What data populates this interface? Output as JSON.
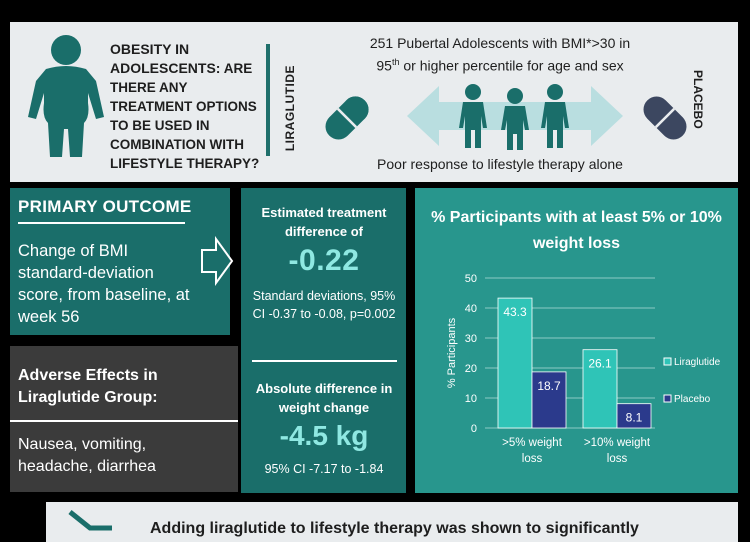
{
  "header": {
    "question_bold": "OBESITY IN ADOLESCENTS:",
    "question_rest": "ARE THERE ANY TREATMENT OPTIONS TO BE USED IN COMBINATION WITH LIFESTYLE THERAPY?",
    "arm_left": "LIRAGLUTIDE",
    "arm_right": "PLACEBO",
    "study_line1": "251 Pubertal Adolescents with BMI*>30 in",
    "study_line2_pre": "95",
    "study_line2_sup": "th",
    "study_line2_post": " or higher percentile for age and sex",
    "poor_response": "Poor response to lifestyle therapy alone"
  },
  "primary": {
    "title": "PRIMARY  OUTCOME",
    "body": "Change of BMI standard-deviation score, from baseline, at week 56"
  },
  "adverse": {
    "title": "Adverse Effects in Liraglutide Group:",
    "body": "Nausea, vomiting, headache, diarrhea"
  },
  "estimate": {
    "title": "Estimated treatment difference of",
    "value": "-0.22",
    "note": "Standard deviations, 95% CI -0.37 to -0.08, p=0.002"
  },
  "absolute": {
    "title": "Absolute difference in weight change",
    "value": "-4.5 kg",
    "ci": "95% CI -7.17 to -1.84"
  },
  "colors": {
    "teal_dark": "#1a6e6a",
    "teal_panel": "#28968d",
    "liraglutide_bar": "#2fc4b7",
    "placebo_bar": "#2b3a8c",
    "accent_value": "#8fe8e2"
  },
  "chart_data": {
    "type": "bar",
    "title": "% Participants with at least 5% or 10% weight loss",
    "ylabel": "% Participants",
    "xlabel": "",
    "categories": [
      ">5% weight loss",
      ">10% weight loss"
    ],
    "ylim": [
      0,
      50
    ],
    "yticks": [
      0,
      10,
      20,
      30,
      40,
      50
    ],
    "grid": true,
    "legend_position": "right",
    "series": [
      {
        "name": "Liraglutide",
        "values": [
          43.3,
          26.1
        ],
        "color": "#2fc4b7"
      },
      {
        "name": "Placebo",
        "values": [
          18.7,
          8.1
        ],
        "color": "#2b3a8c"
      }
    ]
  },
  "footer": {
    "conclusion": "Adding liraglutide to lifestyle therapy was shown to significantly"
  }
}
